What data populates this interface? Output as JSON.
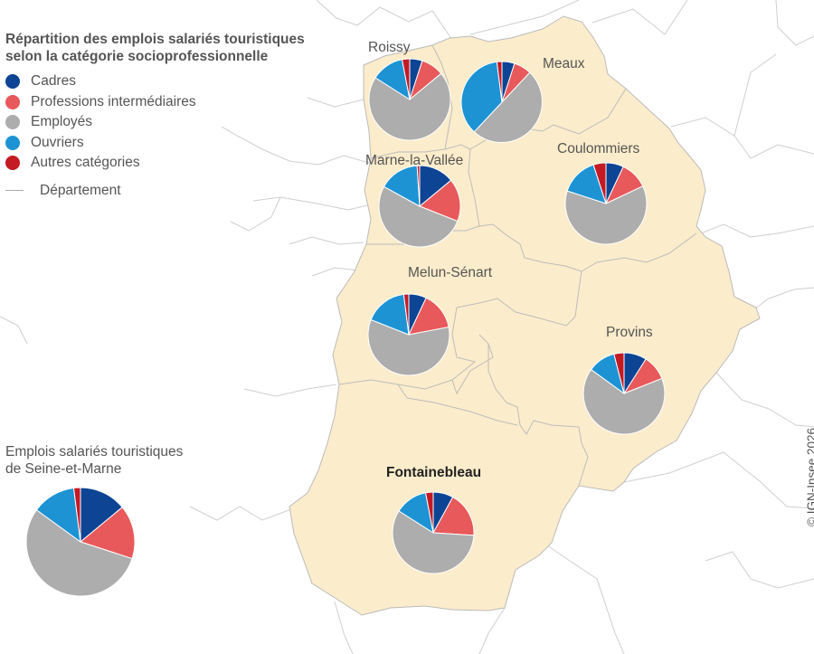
{
  "legend": {
    "title_line1": "Répartition des emplois salariés touristiques",
    "title_line2": "selon la catégorie socioprofessionnelle",
    "categories": [
      {
        "label": "Cadres",
        "color": "#0d4494"
      },
      {
        "label": "Professions intermédiaires",
        "color": "#e8595b"
      },
      {
        "label": "Employés",
        "color": "#adadad"
      },
      {
        "label": "Ouvriers",
        "color": "#1d93d4"
      },
      {
        "label": "Autres catégories",
        "color": "#c41a24"
      }
    ],
    "department_label": "Département"
  },
  "total": {
    "title_line1": "Emplois salariés touristiques",
    "title_line2": "de Seine-et-Marne",
    "shares": [
      0.14,
      0.16,
      0.55,
      0.13,
      0.02
    ]
  },
  "regions": [
    {
      "name": "Roissy",
      "shares": [
        0.05,
        0.09,
        0.7,
        0.13,
        0.03
      ]
    },
    {
      "name": "Meaux",
      "shares": [
        0.05,
        0.07,
        0.5,
        0.36,
        0.02
      ]
    },
    {
      "name": "Coulommiers",
      "shares": [
        0.07,
        0.11,
        0.62,
        0.15,
        0.05
      ]
    },
    {
      "name": "Marne-la-Vallée",
      "shares": [
        0.14,
        0.17,
        0.52,
        0.16,
        0.01
      ]
    },
    {
      "name": "Melun-Sénart",
      "shares": [
        0.07,
        0.15,
        0.59,
        0.17,
        0.02
      ]
    },
    {
      "name": "Provins",
      "shares": [
        0.09,
        0.1,
        0.66,
        0.11,
        0.04
      ]
    },
    {
      "name": "Fontainebleau",
      "shares": [
        0.08,
        0.18,
        0.58,
        0.13,
        0.03
      ]
    }
  ],
  "copyright": "© IGN-Insee 2026"
}
